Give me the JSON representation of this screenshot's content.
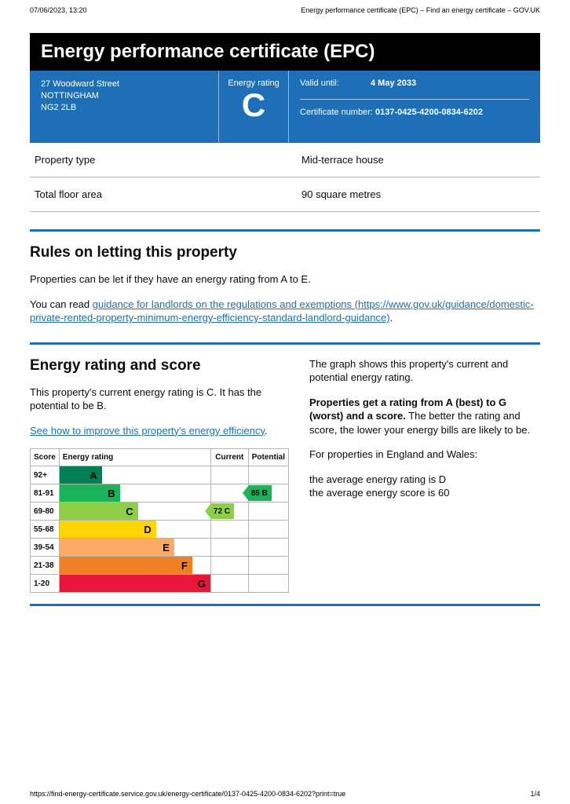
{
  "header": {
    "datetime": "07/06/2023, 13:20",
    "doc_title": "Energy performance certificate (EPC) – Find an energy certificate – GOV.UK"
  },
  "footer": {
    "url": "https://find-energy-certificate.service.gov.uk/energy-certificate/0137-0425-4200-0834-6202?print=true",
    "page": "1/4"
  },
  "title": "Energy performance certificate (EPC)",
  "address": {
    "line1": "27 Woodward Street",
    "line2": "NOTTINGHAM",
    "postcode": "NG2 2LB"
  },
  "rating": {
    "label": "Energy rating",
    "letter": "C"
  },
  "valid": {
    "label": "Valid until:",
    "date": "4 May 2033",
    "cert_label": "Certificate number:",
    "cert_number": "0137-0425-4200-0834-6202"
  },
  "props": [
    {
      "label": "Property type",
      "value": "Mid-terrace house"
    },
    {
      "label": "Total floor area",
      "value": "90 square metres"
    }
  ],
  "rules": {
    "heading": "Rules on letting this property",
    "p1": "Properties can be let if they have an energy rating from A to E.",
    "p2_before": "You can read ",
    "p2_link_text": "guidance for landlords on the regulations and exemptions (https://www.gov.uk/guidance/domestic-private-rented-property-minimum-energy-efficiency-standard-landlord-guidance)",
    "p2_after": "."
  },
  "ers": {
    "heading": "Energy rating and score",
    "p1": "This property's current energy rating is C. It has the potential to be B.",
    "link": "See how to improve this property's energy efficiency",
    "link_after": "."
  },
  "right": {
    "p1": "The graph shows this property's current and potential energy rating.",
    "p2_bold": "Properties get a rating from A (best) to G (worst) and a score.",
    "p2_rest": " The better the rating and score, the lower your energy bills are likely to be.",
    "p3": "For properties in England and Wales:",
    "p4a": "the average energy rating is D",
    "p4b": "the average energy score is 60"
  },
  "chart": {
    "headers": {
      "score": "Score",
      "rating": "Energy rating",
      "current": "Current",
      "potential": "Potential"
    },
    "bands": [
      {
        "score": "92+",
        "letter": "A",
        "color": "#008054",
        "width_pct": 28
      },
      {
        "score": "81-91",
        "letter": "B",
        "color": "#19b459",
        "width_pct": 40
      },
      {
        "score": "69-80",
        "letter": "C",
        "color": "#8dce46",
        "width_pct": 52
      },
      {
        "score": "55-68",
        "letter": "D",
        "color": "#ffd500",
        "width_pct": 64
      },
      {
        "score": "39-54",
        "letter": "E",
        "color": "#fcaa65",
        "width_pct": 76
      },
      {
        "score": "21-38",
        "letter": "F",
        "color": "#ef8023",
        "width_pct": 88
      },
      {
        "score": "1-20",
        "letter": "G",
        "color": "#e9153b",
        "width_pct": 100
      }
    ],
    "current": {
      "band_index": 2,
      "text": "72  C",
      "color": "#8dce46"
    },
    "potential": {
      "band_index": 1,
      "text": "85  B",
      "color": "#19b459"
    }
  },
  "colors": {
    "govuk_blue": "#1d70b8"
  }
}
